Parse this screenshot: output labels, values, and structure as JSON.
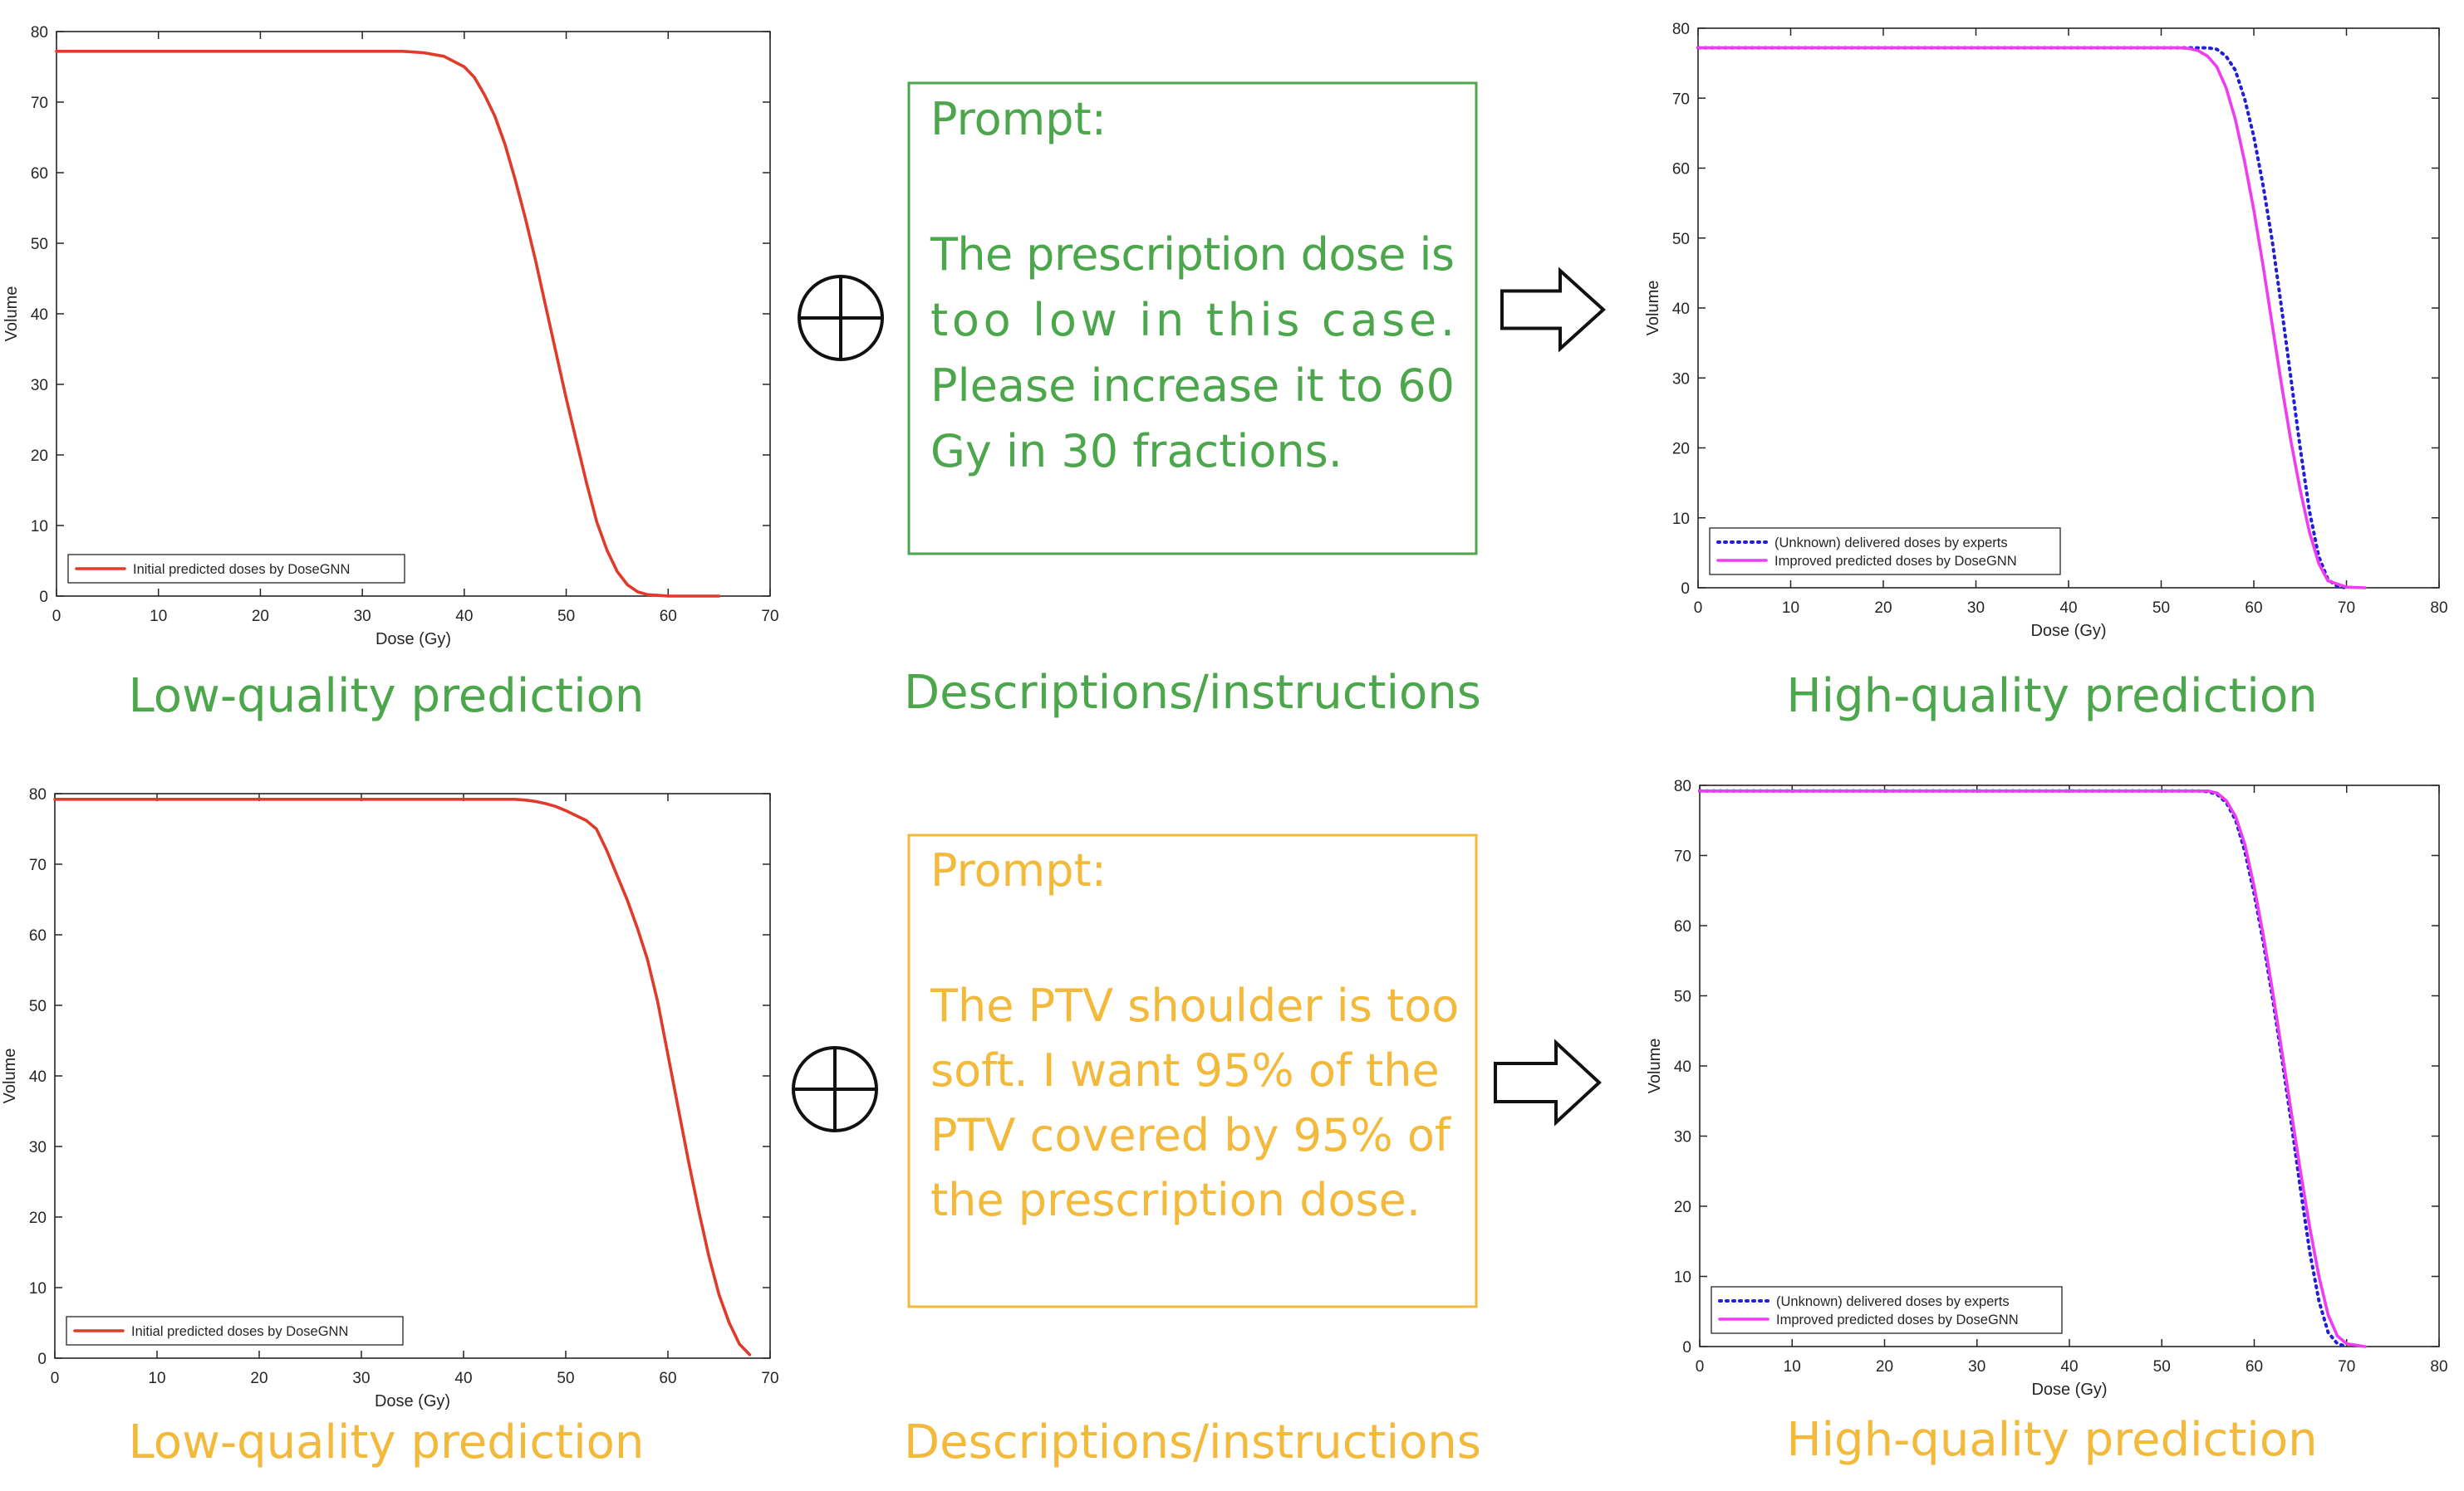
{
  "colors": {
    "green": "#4ca64c",
    "yellow": "#f2b93b",
    "red_line": "#e03a2a",
    "blue_dotted": "#1f1fd6",
    "magenta": "#f03cf0"
  },
  "icons": {
    "plus_circle": "circle-plus-icon",
    "arrow": "right-arrow-icon"
  },
  "rows": [
    {
      "low_caption": "Low-quality prediction",
      "mid_caption": "Descriptions/instructions",
      "high_caption": "High-quality prediction",
      "prompt_title": "Prompt:",
      "prompt_lines": [
        "The prescription dose is",
        "too low in this case.",
        "Please increase it to 60",
        "Gy in 30 fractions."
      ],
      "prompt_justify": [
        true,
        true,
        true,
        false
      ]
    },
    {
      "low_caption": "Low-quality prediction",
      "mid_caption": "Descriptions/instructions",
      "high_caption": "High-quality prediction",
      "prompt_title": "Prompt:",
      "prompt_lines": [
        "The PTV shoulder is too",
        "soft. I want 95% of the",
        "PTV covered by 95% of",
        "the prescription dose."
      ],
      "prompt_justify": [
        false,
        false,
        false,
        false
      ]
    }
  ],
  "chart_data": [
    {
      "type": "line",
      "xlabel": "Dose (Gy)",
      "ylabel": "Volume",
      "xlim": [
        0,
        70
      ],
      "ylim": [
        0,
        80
      ],
      "xticks": [
        0,
        10,
        20,
        30,
        40,
        50,
        60,
        70
      ],
      "yticks": [
        0,
        10,
        20,
        30,
        40,
        50,
        60,
        70,
        80
      ],
      "legend_position": "bottom-left",
      "series": [
        {
          "name": "Initial predicted doses by DoseGNN",
          "color": "#e03a2a",
          "style": "solid",
          "x": [
            0,
            34,
            36,
            38,
            40,
            41,
            42,
            43,
            44,
            45,
            46,
            47,
            48,
            49,
            50,
            51,
            52,
            53,
            54,
            55,
            56,
            57,
            58,
            59,
            60,
            62,
            65
          ],
          "y": [
            77.2,
            77.2,
            77.0,
            76.5,
            75.0,
            73.5,
            71.0,
            68.0,
            64.0,
            59.0,
            53.5,
            47.5,
            41.0,
            34.5,
            28.0,
            22.0,
            16.0,
            10.5,
            6.5,
            3.5,
            1.6,
            0.6,
            0.2,
            0.1,
            0,
            0,
            0
          ]
        }
      ]
    },
    {
      "type": "line",
      "xlabel": "Dose (Gy)",
      "ylabel": "Volume",
      "xlim": [
        0,
        80
      ],
      "ylim": [
        0,
        80
      ],
      "xticks": [
        0,
        10,
        20,
        30,
        40,
        50,
        60,
        70,
        80
      ],
      "yticks": [
        0,
        10,
        20,
        30,
        40,
        50,
        60,
        70,
        80
      ],
      "legend_position": "bottom-left",
      "series": [
        {
          "name": "(Unknown) delivered doses by experts",
          "color": "#1f1fd6",
          "style": "dotted",
          "x": [
            0,
            54,
            55,
            56,
            57,
            58,
            59,
            60,
            61,
            62,
            63,
            64,
            65,
            66,
            67,
            68,
            69,
            70
          ],
          "y": [
            77.2,
            77.2,
            77.2,
            77.0,
            76.0,
            74.0,
            70.0,
            64.5,
            57.5,
            49.5,
            40.0,
            30.0,
            20.0,
            11.0,
            4.5,
            1.2,
            0.2,
            0
          ]
        },
        {
          "name": "Improved predicted doses by DoseGNN",
          "color": "#f03cf0",
          "style": "solid",
          "x": [
            0,
            52,
            53,
            54,
            55,
            56,
            57,
            58,
            59,
            60,
            61,
            62,
            63,
            64,
            65,
            66,
            67,
            68,
            70,
            72
          ],
          "y": [
            77.2,
            77.2,
            77.1,
            76.8,
            76.0,
            74.5,
            71.5,
            67.0,
            61.0,
            54.0,
            46.0,
            37.5,
            29.0,
            21.0,
            14.0,
            8.0,
            3.5,
            1.0,
            0.1,
            0
          ]
        }
      ]
    },
    {
      "type": "line",
      "xlabel": "Dose (Gy)",
      "ylabel": "Volume",
      "xlim": [
        0,
        70
      ],
      "ylim": [
        0,
        80
      ],
      "xticks": [
        0,
        10,
        20,
        30,
        40,
        50,
        60,
        70
      ],
      "yticks": [
        0,
        10,
        20,
        30,
        40,
        50,
        60,
        70,
        80
      ],
      "legend_position": "bottom-left",
      "series": [
        {
          "name": "Initial predicted doses by DoseGNN",
          "color": "#e03a2a",
          "style": "solid",
          "x": [
            0,
            45,
            46,
            47,
            48,
            49,
            50,
            51,
            52,
            53,
            54,
            55,
            56,
            57,
            58,
            59,
            60,
            61,
            62,
            63,
            64,
            65,
            66,
            67,
            68
          ],
          "y": [
            79.2,
            79.2,
            79.1,
            78.9,
            78.6,
            78.2,
            77.6,
            76.9,
            76.2,
            75.0,
            72.0,
            68.5,
            65.0,
            61.0,
            56.5,
            50.5,
            43.0,
            35.5,
            28.0,
            21.0,
            14.5,
            9.0,
            5.0,
            2.0,
            0.5
          ]
        }
      ]
    },
    {
      "type": "line",
      "xlabel": "Dose (Gy)",
      "ylabel": "Volume",
      "xlim": [
        0,
        80
      ],
      "ylim": [
        0,
        80
      ],
      "xticks": [
        0,
        10,
        20,
        30,
        40,
        50,
        60,
        70,
        80
      ],
      "yticks": [
        0,
        10,
        20,
        30,
        40,
        50,
        60,
        70,
        80
      ],
      "legend_position": "bottom-left",
      "series": [
        {
          "name": "(Unknown) delivered doses by experts",
          "color": "#1f1fd6",
          "style": "dotted",
          "x": [
            0,
            54,
            55,
            56,
            57,
            58,
            59,
            60,
            61,
            62,
            63,
            64,
            65,
            66,
            67,
            68,
            69,
            70
          ],
          "y": [
            79.2,
            79.2,
            79.1,
            78.7,
            77.5,
            75.0,
            70.5,
            64.5,
            57.5,
            49.5,
            41.0,
            32.0,
            22.5,
            13.5,
            6.5,
            2.0,
            0.4,
            0
          ]
        },
        {
          "name": "Improved predicted doses by DoseGNN",
          "color": "#f03cf0",
          "style": "solid",
          "x": [
            0,
            55,
            56,
            57,
            58,
            59,
            60,
            61,
            62,
            63,
            64,
            65,
            66,
            67,
            68,
            69,
            70,
            72
          ],
          "y": [
            79.2,
            79.2,
            78.9,
            77.8,
            75.5,
            71.5,
            65.5,
            58.5,
            50.5,
            42.0,
            33.5,
            25.0,
            17.0,
            10.0,
            4.5,
            1.5,
            0.4,
            0
          ]
        }
      ]
    }
  ]
}
